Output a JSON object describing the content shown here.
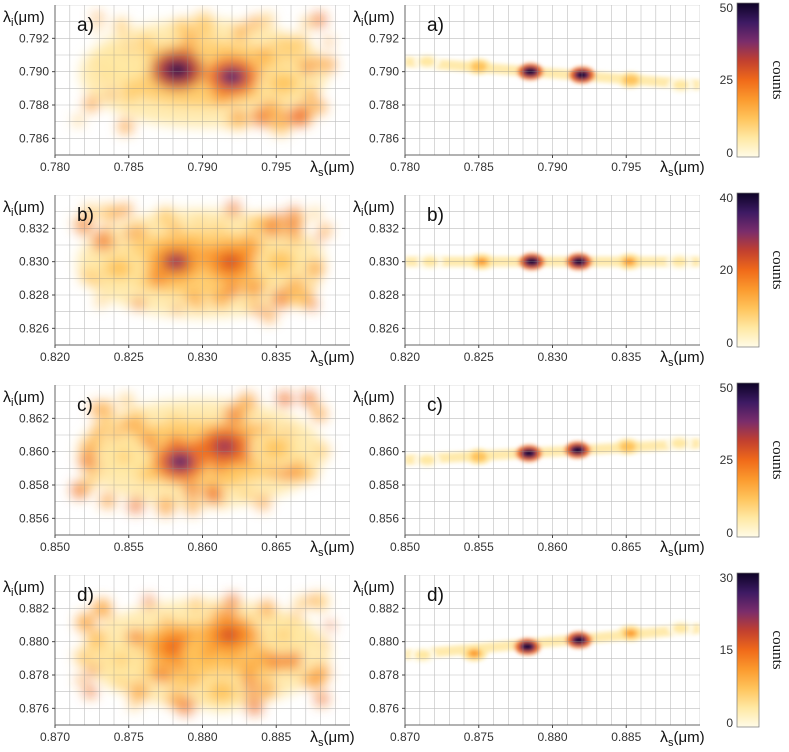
{
  "figure": {
    "row_labels": [
      "a)",
      "b)",
      "c)",
      "d)"
    ],
    "x_axis_label": "λs(μm)",
    "y_axis_label": "λi(μm)",
    "colorbar_label": "counts",
    "colormap": [
      "#fffbe8",
      "#ffe8a3",
      "#ffc45c",
      "#fb9a2e",
      "#f06a19",
      "#c2402f",
      "#7a2d6b",
      "#3d1a63",
      "#0d0326"
    ]
  },
  "chart_data": [
    {
      "type": "heatmap",
      "panel": "measured",
      "row": "a)",
      "xlim": [
        0.78,
        0.8
      ],
      "ylim": [
        0.785,
        0.794
      ],
      "x_ticks": [
        "0.780",
        "0.785",
        "0.790",
        "0.795"
      ],
      "y_ticks": [
        "0.786",
        "0.788",
        "0.790",
        "0.792"
      ],
      "xlabel": "λs(μm)",
      "ylabel": "λi(μm)",
      "grid": true,
      "peaks": [
        {
          "x": 0.7846,
          "y": 0.7905,
          "counts": 8
        },
        {
          "x": 0.7883,
          "y": 0.7901,
          "counts": 50
        },
        {
          "x": 0.792,
          "y": 0.7897,
          "counts": 42
        },
        {
          "x": 0.7955,
          "y": 0.7893,
          "counts": 14
        }
      ]
    },
    {
      "type": "heatmap",
      "panel": "simulated",
      "row": "a)",
      "xlim": [
        0.78,
        0.8
      ],
      "ylim": [
        0.785,
        0.794
      ],
      "x_ticks": [
        "0.780",
        "0.785",
        "0.790",
        "0.795"
      ],
      "y_ticks": [
        "0.786",
        "0.788",
        "0.790",
        "0.792"
      ],
      "xlabel": "λs(μm)",
      "ylabel": "λi(μm)",
      "grid": true,
      "peaks": [
        {
          "x": 0.7815,
          "y": 0.7906,
          "counts": 4
        },
        {
          "x": 0.785,
          "y": 0.7903,
          "counts": 14
        },
        {
          "x": 0.7885,
          "y": 0.79,
          "counts": 48
        },
        {
          "x": 0.792,
          "y": 0.7898,
          "counts": 48
        },
        {
          "x": 0.7953,
          "y": 0.7895,
          "counts": 14
        },
        {
          "x": 0.7987,
          "y": 0.7892,
          "counts": 4
        }
      ],
      "colorbar": {
        "min": 0,
        "max": 50,
        "ticks": [
          "0",
          "25",
          "50"
        ],
        "label": "counts"
      }
    },
    {
      "type": "heatmap",
      "panel": "measured",
      "row": "b)",
      "xlim": [
        0.82,
        0.84
      ],
      "ylim": [
        0.825,
        0.834
      ],
      "x_ticks": [
        "0.820",
        "0.825",
        "0.830",
        "0.835"
      ],
      "y_ticks": [
        "0.826",
        "0.828",
        "0.830",
        "0.832"
      ],
      "xlabel": "λs(μm)",
      "ylabel": "λi(μm)",
      "grid": true,
      "peaks": [
        {
          "x": 0.8243,
          "y": 0.8296,
          "counts": 14
        },
        {
          "x": 0.8282,
          "y": 0.83,
          "counts": 36
        },
        {
          "x": 0.8319,
          "y": 0.83,
          "counts": 32
        },
        {
          "x": 0.8353,
          "y": 0.83,
          "counts": 12
        }
      ]
    },
    {
      "type": "heatmap",
      "panel": "simulated",
      "row": "b)",
      "xlim": [
        0.82,
        0.84
      ],
      "ylim": [
        0.825,
        0.834
      ],
      "x_ticks": [
        "0.820",
        "0.825",
        "0.830",
        "0.835"
      ],
      "y_ticks": [
        "0.826",
        "0.828",
        "0.830",
        "0.832"
      ],
      "xlabel": "λs(μm)",
      "ylabel": "λi(μm)",
      "grid": true,
      "peaks": [
        {
          "x": 0.8217,
          "y": 0.83,
          "counts": 4
        },
        {
          "x": 0.8252,
          "y": 0.83,
          "counts": 13
        },
        {
          "x": 0.8286,
          "y": 0.83,
          "counts": 40
        },
        {
          "x": 0.8318,
          "y": 0.83,
          "counts": 40
        },
        {
          "x": 0.8352,
          "y": 0.83,
          "counts": 13
        },
        {
          "x": 0.8386,
          "y": 0.83,
          "counts": 4
        }
      ],
      "colorbar": {
        "min": 0,
        "max": 40,
        "ticks": [
          "0",
          "20",
          "40"
        ],
        "label": "counts"
      }
    },
    {
      "type": "heatmap",
      "panel": "measured",
      "row": "c)",
      "xlim": [
        0.85,
        0.87
      ],
      "ylim": [
        0.855,
        0.864
      ],
      "x_ticks": [
        "0.850",
        "0.855",
        "0.860",
        "0.865"
      ],
      "y_ticks": [
        "0.856",
        "0.858",
        "0.860",
        "0.862"
      ],
      "xlabel": "λs(μm)",
      "ylabel": "λi(μm)",
      "grid": true,
      "peaks": [
        {
          "x": 0.8547,
          "y": 0.8597,
          "counts": 10
        },
        {
          "x": 0.8585,
          "y": 0.8594,
          "counts": 45
        },
        {
          "x": 0.8615,
          "y": 0.8603,
          "counts": 40
        },
        {
          "x": 0.865,
          "y": 0.8602,
          "counts": 14
        }
      ]
    },
    {
      "type": "heatmap",
      "panel": "simulated",
      "row": "c)",
      "xlim": [
        0.85,
        0.87
      ],
      "ylim": [
        0.855,
        0.864
      ],
      "x_ticks": [
        "0.850",
        "0.855",
        "0.860",
        "0.865"
      ],
      "y_ticks": [
        "0.856",
        "0.858",
        "0.860",
        "0.862"
      ],
      "xlabel": "λs(μm)",
      "ylabel": "λi(μm)",
      "grid": true,
      "peaks": [
        {
          "x": 0.8515,
          "y": 0.8595,
          "counts": 4
        },
        {
          "x": 0.855,
          "y": 0.8597,
          "counts": 13
        },
        {
          "x": 0.8584,
          "y": 0.8599,
          "counts": 48
        },
        {
          "x": 0.8617,
          "y": 0.8601,
          "counts": 48
        },
        {
          "x": 0.8651,
          "y": 0.8603,
          "counts": 13
        },
        {
          "x": 0.8686,
          "y": 0.8605,
          "counts": 4
        }
      ],
      "colorbar": {
        "min": 0,
        "max": 50,
        "ticks": [
          "0",
          "25",
          "50"
        ],
        "label": "counts"
      }
    },
    {
      "type": "heatmap",
      "panel": "measured",
      "row": "d)",
      "xlim": [
        0.87,
        0.89
      ],
      "ylim": [
        0.875,
        0.884
      ],
      "x_ticks": [
        "0.870",
        "0.875",
        "0.880",
        "0.885"
      ],
      "y_ticks": [
        "0.876",
        "0.878",
        "0.880",
        "0.882"
      ],
      "xlabel": "λs(μm)",
      "ylabel": "λi(μm)",
      "grid": true,
      "peaks": [
        {
          "x": 0.8745,
          "y": 0.8789,
          "counts": 10
        },
        {
          "x": 0.8782,
          "y": 0.8797,
          "counts": 28
        },
        {
          "x": 0.8803,
          "y": 0.8793,
          "counts": 16
        },
        {
          "x": 0.8818,
          "y": 0.8804,
          "counts": 30
        },
        {
          "x": 0.8813,
          "y": 0.877,
          "counts": 12
        },
        {
          "x": 0.8855,
          "y": 0.8804,
          "counts": 10
        }
      ]
    },
    {
      "type": "heatmap",
      "panel": "simulated",
      "row": "d)",
      "xlim": [
        0.87,
        0.89
      ],
      "ylim": [
        0.875,
        0.884
      ],
      "x_ticks": [
        "0.870",
        "0.875",
        "0.880",
        "0.885"
      ],
      "y_ticks": [
        "0.876",
        "0.878",
        "0.880",
        "0.882"
      ],
      "xlabel": "λs(μm)",
      "ylabel": "λi(μm)",
      "grid": true,
      "peaks": [
        {
          "x": 0.8712,
          "y": 0.8792,
          "counts": 3
        },
        {
          "x": 0.8747,
          "y": 0.8793,
          "counts": 10
        },
        {
          "x": 0.8783,
          "y": 0.8797,
          "counts": 30
        },
        {
          "x": 0.8818,
          "y": 0.8801,
          "counts": 30
        },
        {
          "x": 0.8853,
          "y": 0.8805,
          "counts": 10
        },
        {
          "x": 0.8887,
          "y": 0.8808,
          "counts": 3
        }
      ],
      "colorbar": {
        "min": 0,
        "max": 30,
        "ticks": [
          "0",
          "15",
          "30"
        ],
        "label": "counts"
      }
    }
  ]
}
